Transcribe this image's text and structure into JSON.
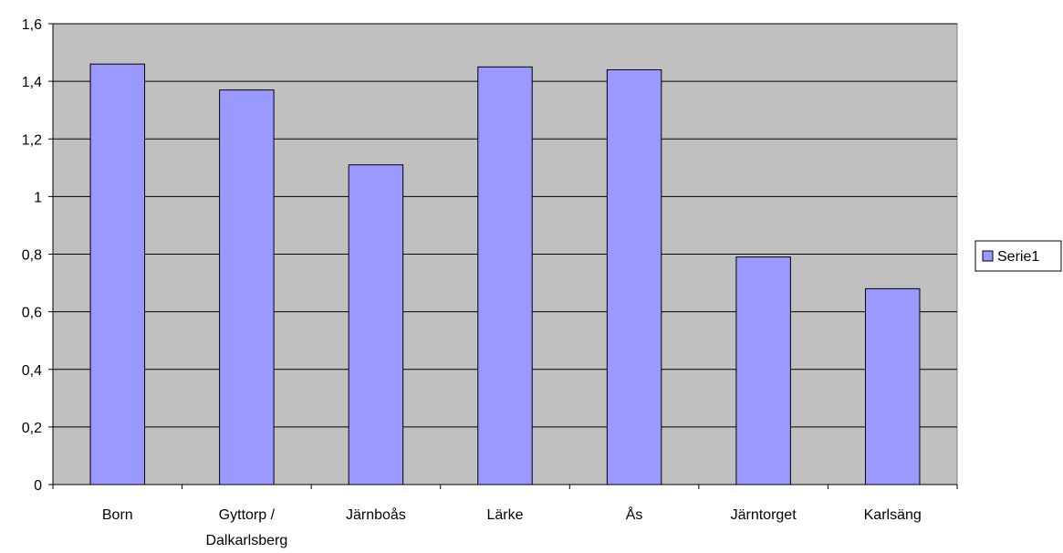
{
  "chart_data": {
    "type": "bar",
    "categories": [
      [
        "Born"
      ],
      [
        "Gyttorp /",
        "Dalkarlsberg"
      ],
      [
        "Järnboås"
      ],
      [
        "Lärke"
      ],
      [
        "Ås"
      ],
      [
        "Järntorget"
      ],
      [
        "Karlsäng"
      ]
    ],
    "series": [
      {
        "name": "Serie1",
        "values": [
          1.46,
          1.37,
          1.11,
          1.45,
          1.44,
          0.79,
          0.68
        ]
      }
    ],
    "ylim": [
      0,
      1.6
    ],
    "yticks": [
      0,
      0.2,
      0.4,
      0.6,
      0.8,
      1,
      1.2,
      1.4,
      1.6
    ],
    "ytick_labels": [
      "0",
      "0,2",
      "0,4",
      "0,6",
      "0,8",
      "1",
      "1,2",
      "1,4",
      "1,6"
    ],
    "grid": true,
    "legend_position": "right",
    "colors": {
      "plot_background": "#c0c0c0",
      "bar_fill": "#9999ff",
      "bar_stroke": "#000000",
      "grid": "#000000"
    }
  }
}
